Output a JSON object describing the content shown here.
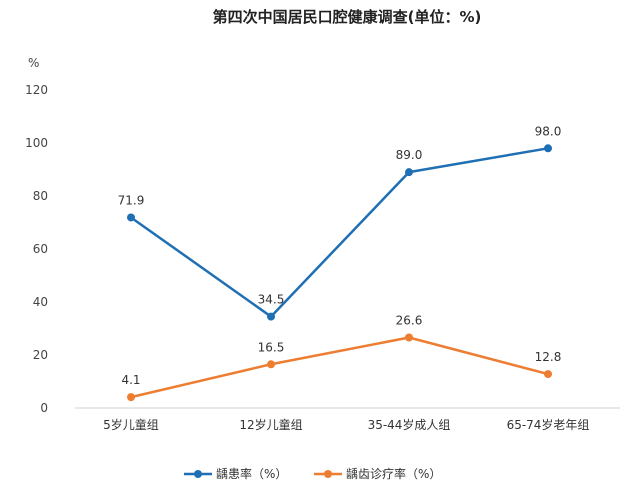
{
  "chart_data": {
    "type": "line",
    "title": "第四次中国居民口腔健康调查(单位：%)",
    "ylabel": "%",
    "categories": [
      "5岁儿童组",
      "12岁儿童组",
      "35-44岁成人组",
      "65-74岁老年组"
    ],
    "ylim": [
      0,
      120
    ],
    "yticks": [
      0,
      20,
      40,
      60,
      80,
      100,
      120
    ],
    "grid": false,
    "legend_position": "bottom",
    "series": [
      {
        "name": "龋患率（%）",
        "values": [
          71.9,
          34.5,
          89.0,
          98.0
        ],
        "labels": [
          "71.9",
          "34.5",
          "89.0",
          "98.0"
        ],
        "color": "#1f6fb5"
      },
      {
        "name": "龋齿诊疗率（%）",
        "values": [
          4.1,
          16.5,
          26.6,
          12.8
        ],
        "labels": [
          "4.1",
          "16.5",
          "26.6",
          "12.8"
        ],
        "color": "#ed7d31"
      }
    ]
  }
}
